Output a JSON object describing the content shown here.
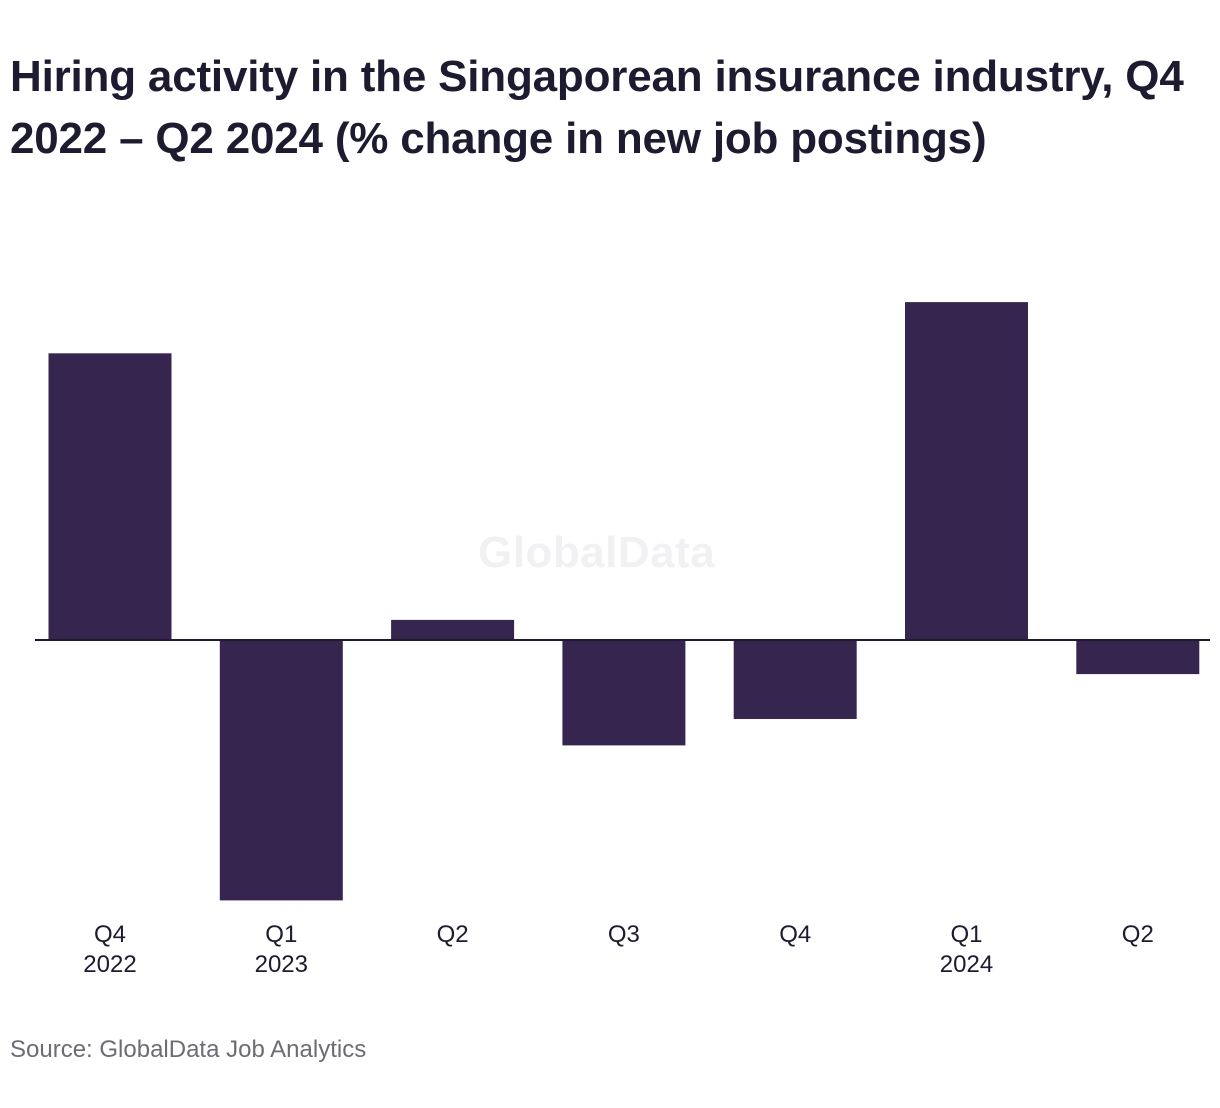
{
  "chart_data": {
    "type": "bar",
    "title": "Hiring activity in the Singaporean insurance industry, Q4 2022 – Q2 2024 (% change in new job postings)",
    "categories": [
      [
        "Q4",
        "2022"
      ],
      [
        "Q1",
        "2023"
      ],
      [
        "Q2",
        ""
      ],
      [
        "Q3",
        ""
      ],
      [
        "Q4",
        ""
      ],
      [
        "Q1",
        "2024"
      ],
      [
        "Q2",
        ""
      ]
    ],
    "values": [
      18.5,
      -16.8,
      1.3,
      -6.8,
      -5.1,
      21.8,
      -2.2
    ],
    "ylim": [
      -17,
      22
    ],
    "xlabel": "",
    "ylabel": "",
    "grid": false,
    "legend": "none",
    "bar_color": "#36264f",
    "watermark": "GlobalData",
    "source": "Source: GlobalData Job Analytics"
  }
}
